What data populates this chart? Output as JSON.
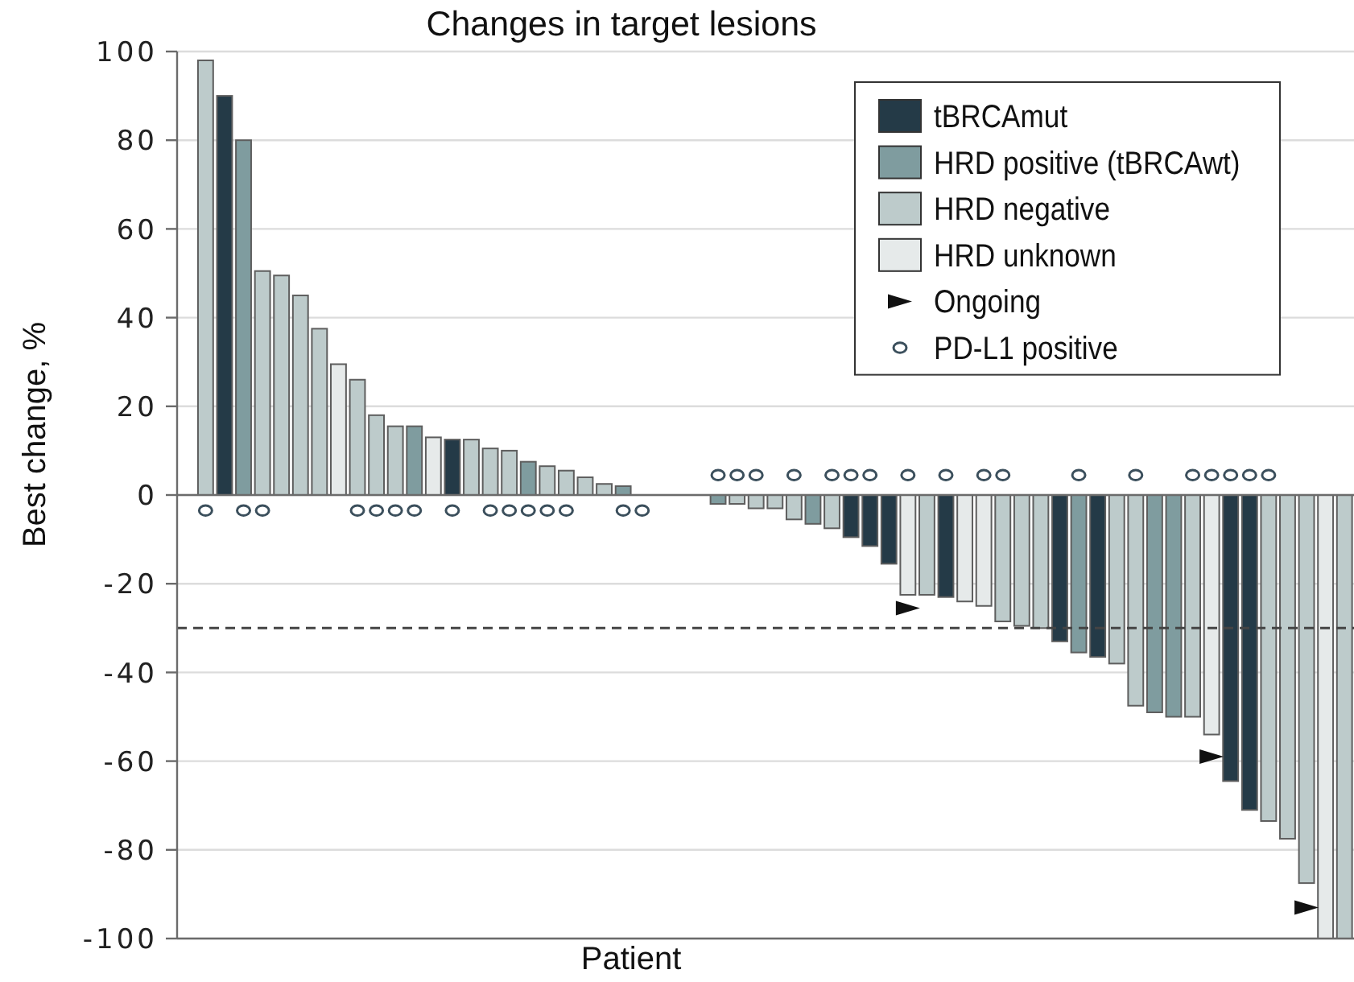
{
  "chart_data": {
    "type": "bar",
    "title": "Changes in target lesions",
    "xlabel": "Patient",
    "ylabel": "Best change, %",
    "categories": [
      null,
      null,
      null,
      null,
      null,
      null,
      null,
      null,
      null,
      null,
      null,
      null,
      null,
      null,
      null,
      null,
      null,
      null,
      null,
      null,
      null,
      null,
      null,
      null,
      null,
      null,
      null,
      null,
      null,
      null,
      null,
      null,
      null,
      null,
      null,
      null,
      null,
      null,
      null,
      null,
      null,
      null,
      null,
      null,
      null,
      null,
      null,
      null,
      null,
      null,
      null,
      null,
      null,
      null,
      null,
      null,
      null,
      null,
      null,
      null,
      null,
      null
    ],
    "series": [
      {
        "name": "tBRCAmut",
        "color": "#243a47",
        "values": [
          null,
          null,
          90,
          null,
          null,
          null,
          null,
          null,
          null,
          null,
          null,
          null,
          null,
          null,
          12.5,
          null,
          null,
          null,
          null,
          null,
          null,
          null,
          null,
          null,
          null,
          null,
          null,
          null,
          null,
          null,
          null,
          null,
          null,
          null,
          null,
          -9.5,
          -11.5,
          -15.5,
          null,
          null,
          -23,
          null,
          null,
          null,
          null,
          null,
          -33,
          null,
          -36.5,
          null,
          null,
          null,
          null,
          null,
          null,
          -64.5,
          -71,
          null,
          null,
          null,
          null,
          null
        ]
      },
      {
        "name": "HRD positive (tBRCAwt)",
        "color": "#7f9c9f",
        "values": [
          null,
          null,
          null,
          80,
          null,
          null,
          null,
          null,
          null,
          null,
          null,
          null,
          15.5,
          null,
          null,
          null,
          null,
          null,
          7.5,
          null,
          null,
          null,
          null,
          2,
          null,
          null,
          null,
          null,
          -2,
          null,
          null,
          null,
          null,
          -6.5,
          null,
          null,
          null,
          null,
          null,
          null,
          null,
          null,
          null,
          null,
          null,
          null,
          null,
          -35.5,
          null,
          null,
          null,
          -49,
          -50,
          null,
          null,
          null,
          null,
          null,
          null,
          null,
          null,
          null
        ]
      },
      {
        "name": "HRD negative",
        "color": "#bdcbcb",
        "values": [
          null,
          98,
          null,
          null,
          50.5,
          49.5,
          45,
          37.5,
          null,
          26,
          18,
          15.5,
          null,
          null,
          null,
          12.5,
          10.5,
          10,
          null,
          6.5,
          5.5,
          4,
          2.5,
          null,
          null,
          null,
          null,
          null,
          null,
          -2,
          -3,
          -3,
          -5.5,
          null,
          -7.5,
          null,
          null,
          null,
          null,
          -22.5,
          null,
          null,
          null,
          -28.5,
          -29.5,
          -30,
          null,
          null,
          null,
          -38,
          -47.5,
          null,
          null,
          -50,
          null,
          null,
          null,
          -73.5,
          -77.5,
          -87.5,
          null,
          -100
        ]
      },
      {
        "name": "HRD unknown",
        "color": "#e6eaea",
        "values": [
          null,
          null,
          null,
          null,
          null,
          null,
          null,
          null,
          29.5,
          null,
          null,
          null,
          null,
          13,
          null,
          null,
          null,
          null,
          null,
          null,
          null,
          null,
          null,
          null,
          null,
          null,
          null,
          null,
          null,
          null,
          null,
          null,
          null,
          null,
          null,
          null,
          null,
          null,
          -22.5,
          null,
          null,
          -24,
          -25,
          null,
          null,
          null,
          null,
          null,
          null,
          null,
          null,
          null,
          null,
          null,
          -54,
          null,
          null,
          null,
          null,
          null,
          -100,
          null
        ]
      },
      {
        "name": "Ongoing",
        "type": "scatter",
        "marker": "triangle",
        "color": "#111111",
        "values": [
          null,
          null,
          null,
          null,
          null,
          null,
          null,
          null,
          null,
          null,
          null,
          null,
          null,
          null,
          null,
          null,
          null,
          null,
          null,
          null,
          null,
          null,
          null,
          null,
          null,
          null,
          null,
          null,
          null,
          null,
          null,
          null,
          null,
          null,
          null,
          null,
          null,
          null,
          -25.5,
          null,
          null,
          null,
          null,
          null,
          null,
          null,
          null,
          null,
          null,
          null,
          null,
          null,
          null,
          null,
          -59,
          null,
          null,
          null,
          null,
          -93,
          null,
          null
        ]
      },
      {
        "name": "PD-L1 positive",
        "type": "scatter",
        "marker": "circle",
        "color": "#3b4f5c",
        "values": [
          null,
          -3.5,
          null,
          -3.5,
          -3.5,
          null,
          null,
          null,
          null,
          -3.5,
          -3.5,
          -3.5,
          -3.5,
          null,
          -3.5,
          null,
          -3.5,
          -3.5,
          -3.5,
          -3.5,
          -3.5,
          null,
          null,
          -3.5,
          -3.5,
          null,
          null,
          null,
          4.5,
          4.5,
          4.5,
          null,
          4.5,
          null,
          4.5,
          4.5,
          4.5,
          null,
          4.5,
          null,
          4.5,
          null,
          4.5,
          4.5,
          null,
          null,
          null,
          4.5,
          null,
          null,
          4.5,
          null,
          null,
          4.5,
          4.5,
          4.5,
          4.5,
          4.5,
          null,
          null,
          null,
          null
        ]
      }
    ],
    "ylim": [
      -100,
      100
    ],
    "yticks": [
      -100,
      -80,
      -60,
      -40,
      -20,
      0,
      20,
      40,
      60,
      80,
      100
    ],
    "grid": "y",
    "legend": "top right",
    "tick_labels": "y",
    "ref_lines": [
      {
        "axis": "y",
        "value": -30,
        "color": "#444444",
        "line_style": "dashed"
      }
    ]
  }
}
